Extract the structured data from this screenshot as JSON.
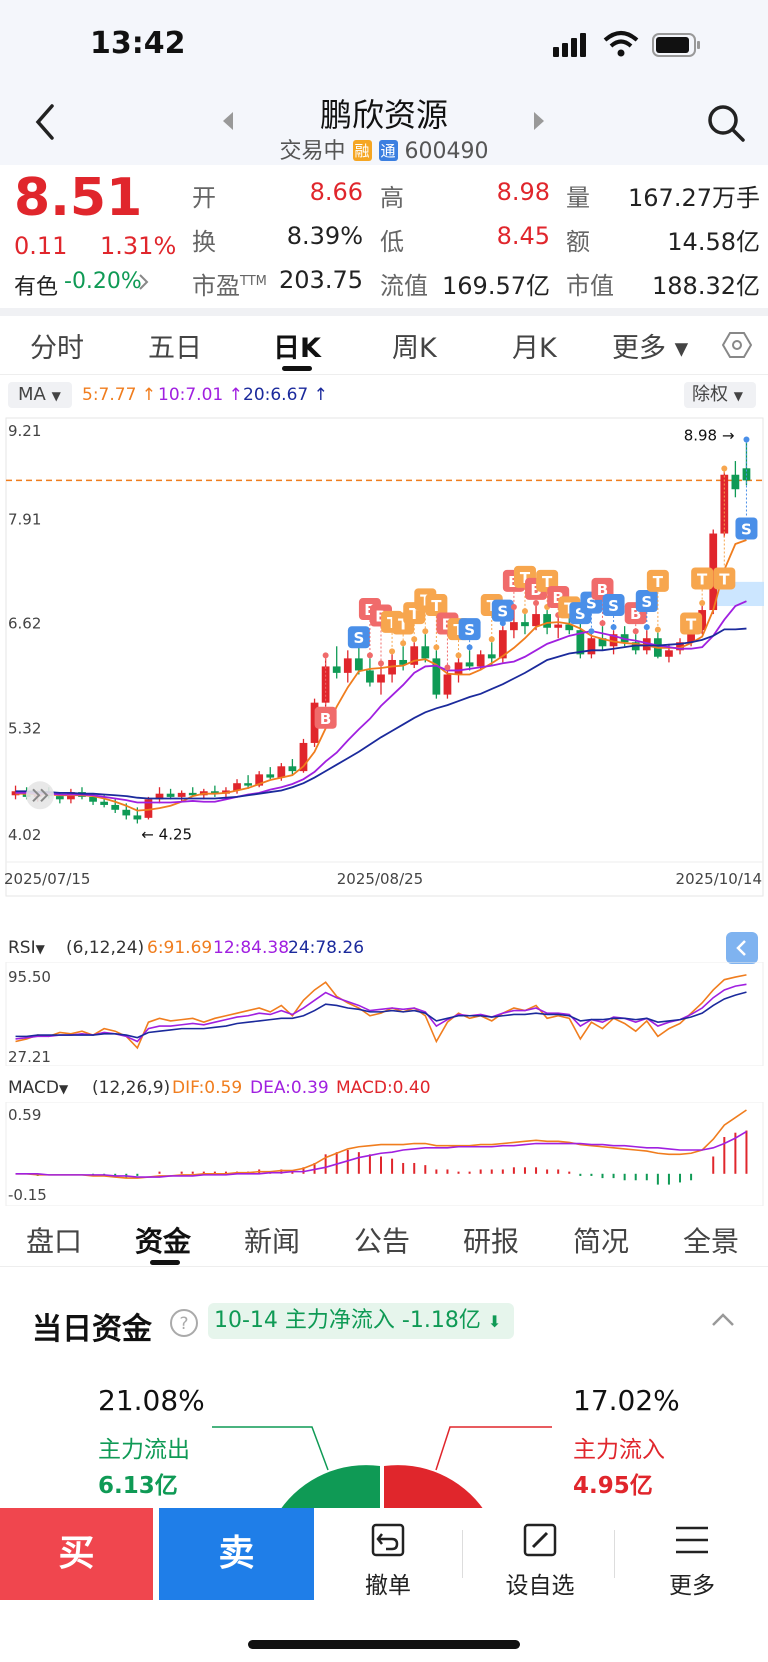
{
  "status": {
    "time": "13:42"
  },
  "header": {
    "title": "鹏欣资源",
    "status": "交易中",
    "tag_rong": "融",
    "tag_tong": "通",
    "code": "600490"
  },
  "quote": {
    "price": "8.51",
    "change": "0.11",
    "change_pct": "1.31%",
    "sector_label": "有色",
    "sector_change": "-0.20%",
    "open_label": "开",
    "open": "8.66",
    "high_label": "高",
    "high": "8.98",
    "vol_label": "量",
    "vol": "167.27万手",
    "turnover_label": "换",
    "turnover": "8.39%",
    "low_label": "低",
    "low": "8.45",
    "amount_label": "额",
    "amount": "14.58亿",
    "pe_label": "市盈TTM",
    "pe": "203.75",
    "float_label": "流值",
    "float": "169.57亿",
    "mcap_label": "市值",
    "mcap": "188.32亿"
  },
  "tabs": [
    "分时",
    "五日",
    "日K",
    "周K",
    "月K",
    "更多 ▾"
  ],
  "ma": {
    "label": "MA",
    "ma5": "5:7.77",
    "ma10": "10:7.01",
    "ma20": "20:6.67",
    "adjust": "除权"
  },
  "chart_data": {
    "type": "candlestick",
    "y_axis_ticks": [
      "9.21",
      "7.91",
      "6.62",
      "5.32",
      "4.02"
    ],
    "x_axis_ticks": [
      "2025/07/15",
      "2025/08/25",
      "2025/10/14"
    ],
    "max_label": "8.98",
    "min_label": "4.25",
    "ref_line": 8.51,
    "ohlc": [
      [
        4.6,
        4.72,
        4.55,
        4.65
      ],
      [
        4.65,
        4.7,
        4.55,
        4.58
      ],
      [
        4.58,
        4.66,
        4.52,
        4.62
      ],
      [
        4.62,
        4.7,
        4.56,
        4.59
      ],
      [
        4.59,
        4.64,
        4.5,
        4.55
      ],
      [
        4.55,
        4.68,
        4.5,
        4.64
      ],
      [
        4.64,
        4.7,
        4.55,
        4.58
      ],
      [
        4.58,
        4.62,
        4.48,
        4.52
      ],
      [
        4.52,
        4.6,
        4.45,
        4.48
      ],
      [
        4.48,
        4.55,
        4.38,
        4.42
      ],
      [
        4.42,
        4.5,
        4.3,
        4.35
      ],
      [
        4.35,
        4.45,
        4.25,
        4.3
      ],
      [
        4.32,
        4.58,
        4.3,
        4.55
      ],
      [
        4.55,
        4.7,
        4.5,
        4.62
      ],
      [
        4.62,
        4.68,
        4.55,
        4.58
      ],
      [
        4.58,
        4.66,
        4.52,
        4.63
      ],
      [
        4.63,
        4.7,
        4.58,
        4.6
      ],
      [
        4.6,
        4.68,
        4.55,
        4.65
      ],
      [
        4.65,
        4.72,
        4.58,
        4.62
      ],
      [
        4.62,
        4.7,
        4.56,
        4.66
      ],
      [
        4.66,
        4.8,
        4.62,
        4.75
      ],
      [
        4.75,
        4.85,
        4.68,
        4.72
      ],
      [
        4.72,
        4.9,
        4.7,
        4.86
      ],
      [
        4.86,
        4.95,
        4.8,
        4.82
      ],
      [
        4.82,
        5.0,
        4.78,
        4.96
      ],
      [
        4.96,
        5.05,
        4.85,
        4.9
      ],
      [
        4.9,
        5.3,
        4.88,
        5.25
      ],
      [
        5.25,
        5.8,
        5.2,
        5.75
      ],
      [
        5.75,
        6.3,
        5.7,
        6.2
      ],
      [
        6.2,
        6.45,
        6.05,
        6.12
      ],
      [
        6.12,
        6.4,
        6.0,
        6.3
      ],
      [
        6.3,
        6.45,
        6.1,
        6.15
      ],
      [
        6.15,
        6.3,
        5.95,
        6.0
      ],
      [
        6.0,
        6.2,
        5.85,
        6.1
      ],
      [
        6.1,
        6.35,
        6.0,
        6.28
      ],
      [
        6.28,
        6.45,
        6.15,
        6.22
      ],
      [
        6.22,
        6.5,
        6.18,
        6.45
      ],
      [
        6.45,
        6.6,
        6.25,
        6.3
      ],
      [
        6.3,
        6.4,
        5.8,
        5.85
      ],
      [
        5.85,
        6.15,
        5.8,
        6.1
      ],
      [
        6.1,
        6.3,
        6.0,
        6.25
      ],
      [
        6.25,
        6.4,
        6.15,
        6.2
      ],
      [
        6.2,
        6.4,
        6.15,
        6.35
      ],
      [
        6.35,
        6.5,
        6.2,
        6.3
      ],
      [
        6.3,
        6.7,
        6.25,
        6.65
      ],
      [
        6.65,
        6.9,
        6.55,
        6.75
      ],
      [
        6.75,
        6.85,
        6.6,
        6.7
      ],
      [
        6.7,
        6.95,
        6.65,
        6.85
      ],
      [
        6.85,
        6.9,
        6.6,
        6.68
      ],
      [
        6.68,
        6.8,
        6.55,
        6.72
      ],
      [
        6.72,
        6.85,
        6.6,
        6.65
      ],
      [
        6.65,
        6.75,
        6.3,
        6.35
      ],
      [
        6.35,
        6.6,
        6.3,
        6.55
      ],
      [
        6.55,
        6.7,
        6.4,
        6.45
      ],
      [
        6.45,
        6.65,
        6.35,
        6.6
      ],
      [
        6.6,
        6.7,
        6.45,
        6.5
      ],
      [
        6.5,
        6.6,
        6.35,
        6.4
      ],
      [
        6.4,
        6.65,
        6.35,
        6.55
      ],
      [
        6.55,
        6.62,
        6.3,
        6.32
      ],
      [
        6.32,
        6.48,
        6.25,
        6.4
      ],
      [
        6.4,
        6.55,
        6.35,
        6.5
      ],
      [
        6.5,
        6.7,
        6.45,
        6.65
      ],
      [
        6.65,
        6.95,
        6.6,
        6.9
      ],
      [
        6.9,
        7.9,
        6.85,
        7.85
      ],
      [
        7.85,
        8.62,
        7.8,
        8.58
      ],
      [
        8.58,
        8.75,
        8.3,
        8.4
      ],
      [
        8.66,
        8.98,
        8.45,
        8.51
      ]
    ],
    "ma5": [
      4.62,
      4.62,
      4.61,
      4.61,
      4.6,
      4.6,
      4.6,
      4.59,
      4.56,
      4.52,
      4.47,
      4.41,
      4.42,
      4.44,
      4.47,
      4.52,
      4.59,
      4.62,
      4.62,
      4.63,
      4.66,
      4.69,
      4.74,
      4.79,
      4.82,
      4.85,
      4.96,
      5.14,
      5.43,
      5.7,
      5.94,
      6.14,
      6.17,
      6.18,
      6.2,
      6.21,
      6.27,
      6.29,
      6.22,
      6.11,
      6.1,
      6.1,
      6.16,
      6.24,
      6.33,
      6.43,
      6.55,
      6.69,
      6.74,
      6.75,
      6.73,
      6.67,
      6.58,
      6.54,
      6.51,
      6.49,
      6.48,
      6.46,
      6.43,
      6.43,
      6.43,
      6.49,
      6.57,
      6.9,
      7.4,
      7.72,
      7.77
    ],
    "ma10": [
      4.63,
      4.63,
      4.62,
      4.62,
      4.61,
      4.61,
      4.61,
      4.6,
      4.58,
      4.56,
      4.54,
      4.51,
      4.51,
      4.51,
      4.51,
      4.52,
      4.53,
      4.52,
      4.52,
      4.55,
      4.58,
      4.61,
      4.63,
      4.67,
      4.7,
      4.74,
      4.8,
      4.89,
      5.02,
      5.13,
      5.28,
      5.42,
      5.55,
      5.71,
      5.84,
      5.97,
      6.12,
      6.2,
      6.21,
      6.15,
      6.15,
      6.17,
      6.19,
      6.21,
      6.24,
      6.26,
      6.32,
      6.4,
      6.48,
      6.53,
      6.58,
      6.61,
      6.64,
      6.61,
      6.58,
      6.54,
      6.52,
      6.49,
      6.46,
      6.44,
      6.42,
      6.42,
      6.44,
      6.58,
      6.78,
      6.95,
      7.01
    ],
    "ma20": [
      4.65,
      4.65,
      4.64,
      4.64,
      4.63,
      4.63,
      4.62,
      4.62,
      4.61,
      4.6,
      4.59,
      4.57,
      4.56,
      4.56,
      4.56,
      4.56,
      4.56,
      4.56,
      4.56,
      4.57,
      4.58,
      4.6,
      4.62,
      4.64,
      4.66,
      4.7,
      4.75,
      4.82,
      4.9,
      4.98,
      5.06,
      5.14,
      5.23,
      5.32,
      5.4,
      5.48,
      5.56,
      5.63,
      5.68,
      5.72,
      5.77,
      5.82,
      5.86,
      5.92,
      5.98,
      6.05,
      6.12,
      6.2,
      6.28,
      6.32,
      6.36,
      6.38,
      6.4,
      6.4,
      6.42,
      6.44,
      6.46,
      6.46,
      6.46,
      6.47,
      6.48,
      6.5,
      6.53,
      6.58,
      6.66,
      6.66,
      6.67
    ],
    "markers": [
      {
        "i": 28,
        "t": "B",
        "p": 5.55
      },
      {
        "i": 31,
        "t": "S",
        "p": 6.55
      },
      {
        "i": 32,
        "t": "B",
        "p": 6.9
      },
      {
        "i": 33,
        "t": "B",
        "p": 6.82
      },
      {
        "i": 34,
        "t": "T",
        "p": 6.74
      },
      {
        "i": 35,
        "t": "T",
        "p": 6.72
      },
      {
        "i": 36,
        "t": "T",
        "p": 6.85
      },
      {
        "i": 37,
        "t": "T",
        "p": 7.02
      },
      {
        "i": 38,
        "t": "T",
        "p": 6.95
      },
      {
        "i": 39,
        "t": "B",
        "p": 6.72
      },
      {
        "i": 40,
        "t": "T",
        "p": 6.65
      },
      {
        "i": 41,
        "t": "S",
        "p": 6.65
      },
      {
        "i": 43,
        "t": "T",
        "p": 6.95
      },
      {
        "i": 44,
        "t": "S",
        "p": 6.88
      },
      {
        "i": 45,
        "t": "B",
        "p": 7.25
      },
      {
        "i": 46,
        "t": "T",
        "p": 7.3
      },
      {
        "i": 47,
        "t": "B",
        "p": 7.15
      },
      {
        "i": 48,
        "t": "T",
        "p": 7.25
      },
      {
        "i": 49,
        "t": "B",
        "p": 7.05
      },
      {
        "i": 50,
        "t": "T",
        "p": 6.92
      },
      {
        "i": 51,
        "t": "S",
        "p": 6.85
      },
      {
        "i": 52,
        "t": "S",
        "p": 6.98
      },
      {
        "i": 53,
        "t": "B",
        "p": 7.15
      },
      {
        "i": 54,
        "t": "S",
        "p": 6.95
      },
      {
        "i": 56,
        "t": "B",
        "p": 6.85
      },
      {
        "i": 57,
        "t": "S",
        "p": 7.0
      },
      {
        "i": 58,
        "t": "T",
        "p": 7.25
      },
      {
        "i": 61,
        "t": "T",
        "p": 6.72
      },
      {
        "i": 62,
        "t": "T",
        "p": 7.28
      },
      {
        "i": 64,
        "t": "T",
        "p": 7.28
      },
      {
        "i": 66,
        "t": "S",
        "p": 7.9
      }
    ]
  },
  "rsi": {
    "label": "RSI",
    "params": "(6,12,24)",
    "r6": "6:91.69",
    "r12": "12:84.38",
    "r24": "24:78.26",
    "top": "95.50",
    "bottom": "27.21"
  },
  "macd": {
    "label": "MACD",
    "params": "(12,26,9)",
    "dif": "DIF:0.59",
    "dea": "DEA:0.39",
    "macd": "MACD:0.40",
    "top": "0.59",
    "bottom": "-0.15"
  },
  "section_tabs": [
    "盘口",
    "资金",
    "新闻",
    "公告",
    "研报",
    "简况",
    "全景"
  ],
  "fund": {
    "title": "当日资金",
    "tip": "10-14 主力净流入 -1.18亿",
    "out_pct": "21.08%",
    "out_label": "主力流出",
    "out_amt": "6.13亿",
    "in_pct": "17.02%",
    "in_label": "主力流入",
    "in_amt": "4.95亿"
  },
  "bottom_bar": {
    "buy": "买",
    "sell": "卖",
    "cancel": "撤单",
    "watch": "设自选",
    "more": "更多"
  }
}
